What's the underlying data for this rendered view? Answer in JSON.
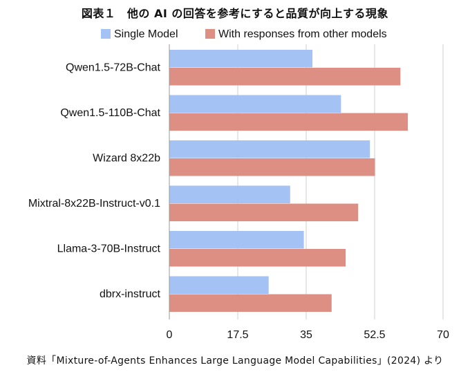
{
  "chart_data": {
    "type": "bar",
    "orientation": "horizontal",
    "title": "図表１　他の AI の回答を参考にすると品質が向上する現象",
    "source": "資料「Mixture-of-Agents Enhances Large Language Model Capabilities」(2024) より",
    "categories": [
      "Qwen1.5-72B-Chat",
      "Qwen1.5-110B-Chat",
      "Wizard 8x22b",
      "Mixtral-8x22B-Instruct-v0.1",
      "Llama-3-70B-Instruct",
      "dbrx-instruct"
    ],
    "series": [
      {
        "name": "Single Model",
        "color": "#a4c2f4",
        "values": [
          36.6,
          43.9,
          51.3,
          30.9,
          34.4,
          25.4
        ]
      },
      {
        "name": "With responses from other models",
        "color": "#dd8f83",
        "values": [
          59.1,
          61.0,
          52.6,
          48.3,
          45.1,
          41.5
        ]
      }
    ],
    "xlim": [
      0,
      70
    ],
    "xticks": [
      0,
      17.5,
      35,
      52.5,
      70
    ],
    "xtick_labels": [
      "0",
      "17.5",
      "35",
      "52.5",
      "70"
    ],
    "xlabel": "",
    "ylabel": "",
    "grid": "vertical",
    "legend_position": "top"
  }
}
